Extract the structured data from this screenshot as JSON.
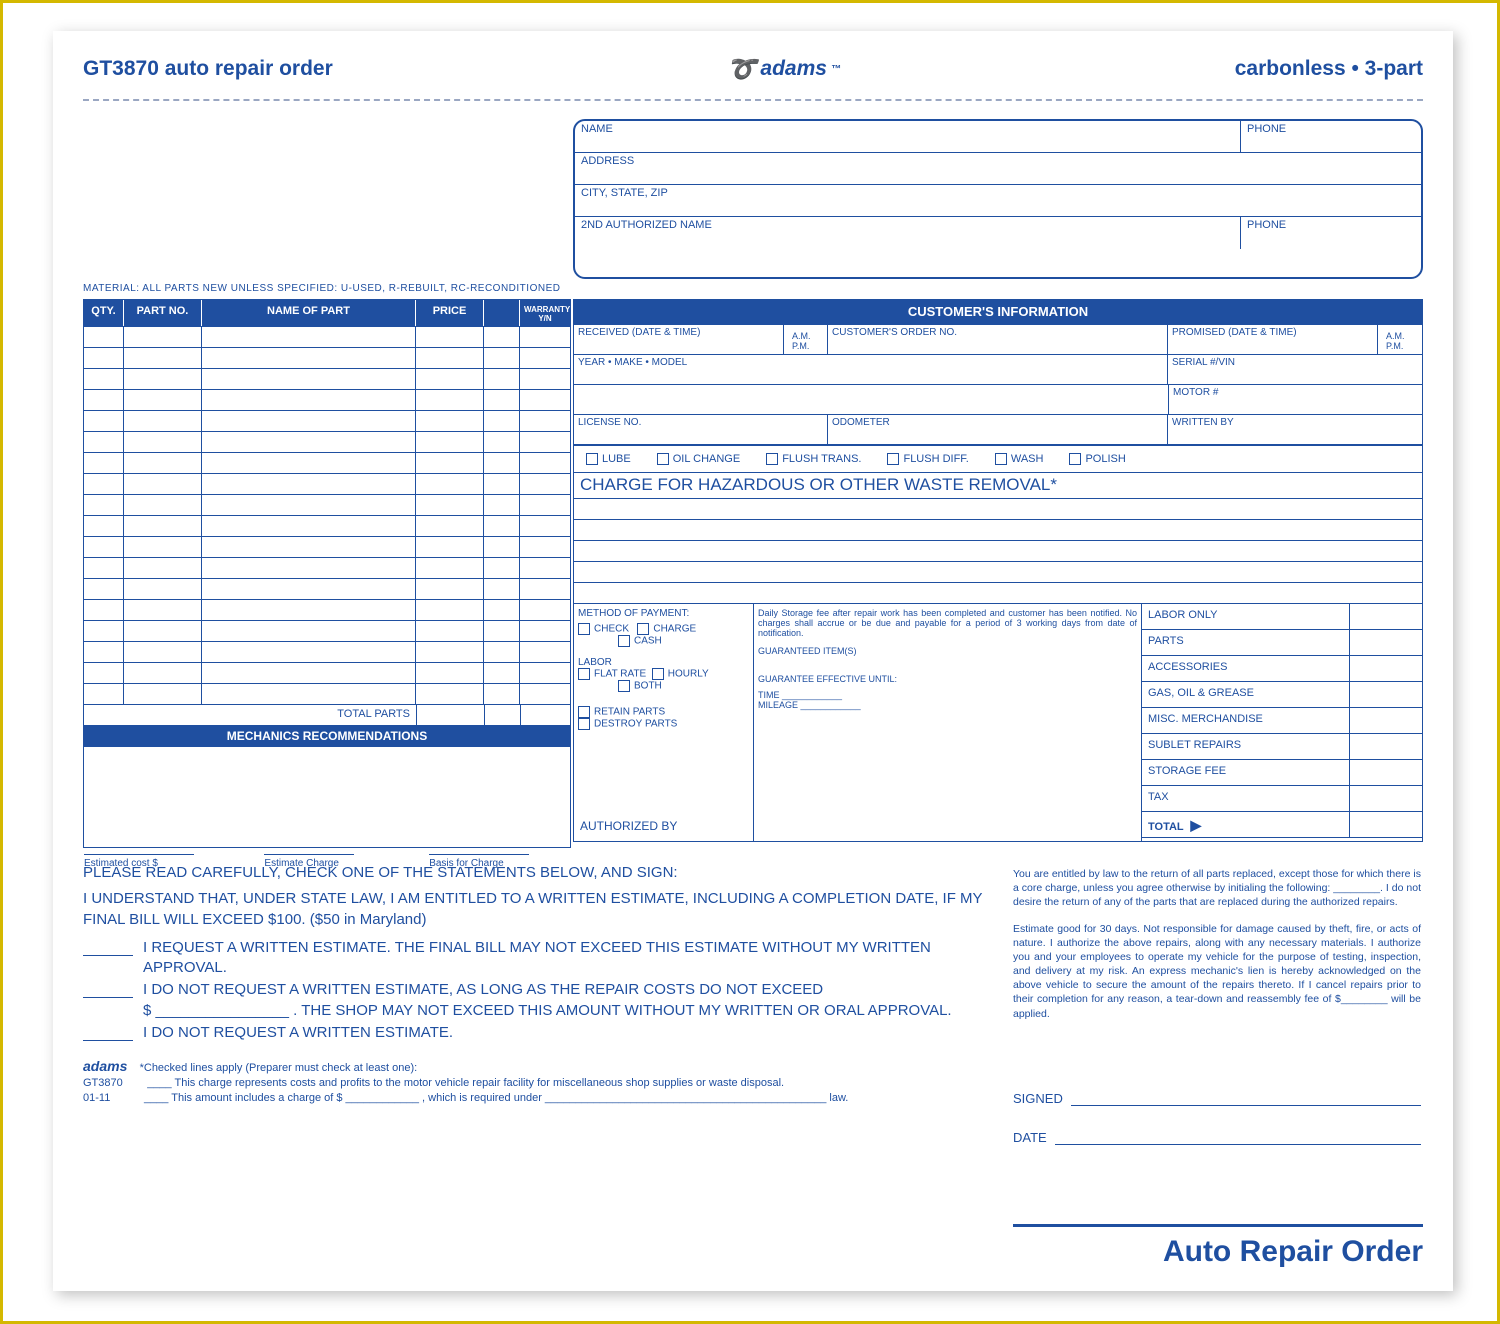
{
  "colors": {
    "brand": "#1f4fa0",
    "frame": "#d4b800",
    "bg": "#ffffff"
  },
  "header": {
    "left": "GT3870 auto repair order",
    "brand": "adams",
    "brand_tm": "™",
    "right": "carbonless • 3-part"
  },
  "customer_box": {
    "name": "NAME",
    "phone": "PHONE",
    "address": "ADDRESS",
    "csz": "CITY, STATE, ZIP",
    "auth2": "2ND AUTHORIZED NAME",
    "phone2": "PHONE"
  },
  "material_note": "MATERIAL: ALL PARTS NEW UNLESS SPECIFIED: U-USED, R-REBUILT, RC-RECONDITIONED",
  "parts_table": {
    "headers": {
      "qty": "QTY.",
      "partno": "PART NO.",
      "name": "NAME OF PART",
      "price": "PRICE",
      "warranty": "WARRANTY\nY/N"
    },
    "row_count": 18,
    "total_parts_label": "TOTAL PARTS",
    "mechanics_rec": "MECHANICS RECOMMENDATIONS",
    "estimates": {
      "cost": "Estimated cost $",
      "charge": "Estimate Charge",
      "basis": "Basis for Charge"
    }
  },
  "cust_info": {
    "title": "CUSTOMER'S INFORMATION",
    "received": "RECEIVED (DATE & TIME)",
    "am": "A.M.",
    "pm": "P.M.",
    "orderno": "CUSTOMER'S ORDER NO.",
    "promised": "PROMISED (DATE & TIME)",
    "ymm": "YEAR • MAKE • MODEL",
    "serial": "SERIAL #/VIN",
    "motor": "MOTOR #",
    "license": "LICENSE NO.",
    "odo": "ODOMETER",
    "written": "WRITTEN BY"
  },
  "services": [
    "LUBE",
    "OIL CHANGE",
    "FLUSH TRANS.",
    "FLUSH DIFF.",
    "WASH",
    "POLISH"
  ],
  "hazardous_header": "CHARGE FOR HAZARDOUS OR OTHER WASTE REMOVAL*",
  "payment": {
    "title": "METHOD OF PAYMENT:",
    "check": "CHECK",
    "charge": "CHARGE",
    "cash": "CASH",
    "labor_title": "LABOR",
    "flat": "FLAT RATE",
    "hourly": "HOURLY",
    "both": "BOTH",
    "retain": "RETAIN PARTS",
    "destroy": "DESTROY PARTS"
  },
  "fineprint": {
    "storage": "Daily Storage fee after repair work has been completed and customer has been notified. No charges shall accrue or be due and payable for a period of 3 working days from date of notification.",
    "guar_items": "GUARANTEED ITEM(S)",
    "guar_until": "GUARANTEE EFFECTIVE UNTIL:",
    "time": "TIME",
    "mileage": "MILEAGE"
  },
  "totals": {
    "rows": [
      "LABOR ONLY",
      "PARTS",
      "ACCESSORIES",
      "GAS, OIL & GREASE",
      "MISC. MERCHANDISE",
      "SUBLET REPAIRS",
      "STORAGE FEE",
      "TAX"
    ],
    "total": "TOTAL"
  },
  "authorized_by": "AUTHORIZED BY",
  "legal": {
    "lead": "PLEASE READ CAREFULLY, CHECK ONE OF THE STATEMENTS BELOW, AND SIGN:",
    "p1": "I UNDERSTAND THAT, UNDER STATE LAW, I AM ENTITLED TO A WRITTEN ESTIMATE, INCLUDING A COMPLETION DATE, IF MY FINAL BILL WILL EXCEED $100. ($50 in Maryland)",
    "opt1": "I REQUEST A WRITTEN ESTIMATE.  THE FINAL BILL MAY NOT EXCEED THIS ESTIMATE WITHOUT MY WRITTEN APPROVAL.",
    "opt2a": "I DO NOT REQUEST A WRITTEN ESTIMATE, AS LONG AS THE REPAIR COSTS DO NOT EXCEED",
    "opt2b": "$ ________________ . THE SHOP MAY NOT EXCEED THIS AMOUNT WITHOUT MY WRITTEN OR ORAL APPROVAL.",
    "opt3": "I DO NOT REQUEST A WRITTEN ESTIMATE.",
    "checked": "*Checked lines apply (Preparer must check at least one):",
    "c1": "This charge represents costs and profits to the motor vehicle repair facility for miscellaneous shop supplies or waste disposal.",
    "c2": "This amount includes a charge of $ ____________ , which is required under ______________________________________________ law.",
    "brand": "adams",
    "formno": "GT3870",
    "rev": "01-11"
  },
  "right_fine": {
    "p1": "You are entitled by law to the return of all parts replaced, except those for which there is a core charge, unless you agree otherwise by initialing the following: ________. I do not desire the return of any of the parts that are replaced during the authorized repairs.",
    "p2": "Estimate good for 30 days. Not responsible for damage caused by theft, fire, or acts of nature. I authorize the above repairs, along with any necessary materials. I authorize you and your employees to operate my vehicle for the purpose of testing, inspection, and delivery at my risk. An express mechanic's lien is hereby acknowledged on the above vehicle to secure the amount of the repairs thereto. If I cancel repairs prior to their completion for any reason, a tear-down and reassembly fee of $________ will be applied.",
    "signed": "SIGNED",
    "date": "DATE"
  },
  "brand_lr": "Auto Repair Order"
}
